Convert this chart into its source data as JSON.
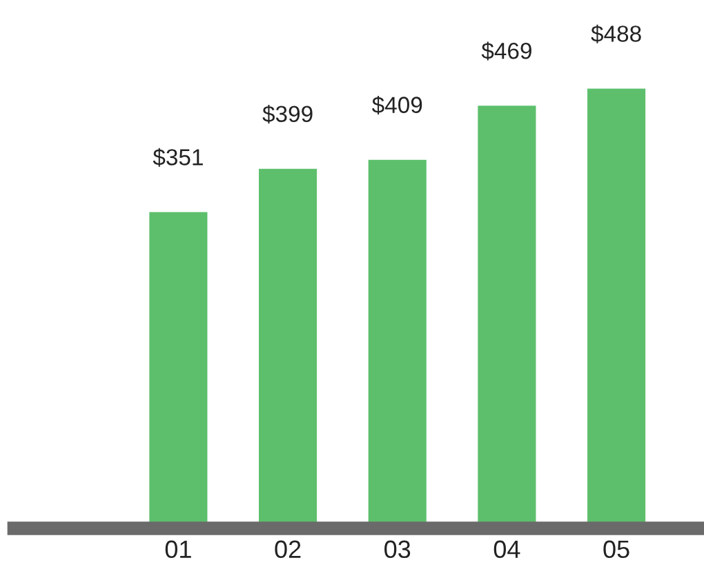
{
  "chart_data": {
    "type": "bar",
    "categories": [
      "01",
      "02",
      "03",
      "04",
      "05"
    ],
    "values": [
      351,
      399,
      409,
      469,
      488
    ],
    "value_labels": [
      "$351",
      "$399",
      "$409",
      "$469",
      "$488"
    ],
    "color": "#5dbf6c"
  }
}
